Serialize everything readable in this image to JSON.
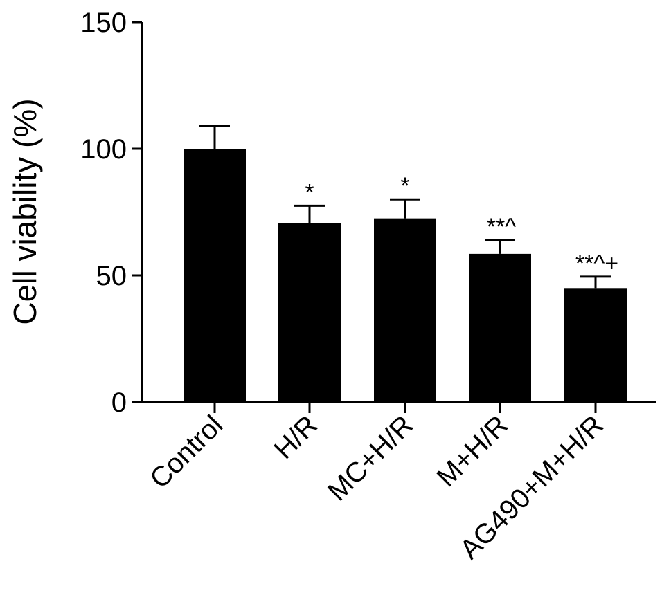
{
  "chart_data": {
    "type": "bar",
    "title": "",
    "xlabel": "",
    "ylabel": "Cell viability (%)",
    "ylim": [
      0,
      150
    ],
    "yticks": [
      0,
      50,
      100,
      150
    ],
    "ytick_labels": [
      "0",
      "50",
      "100",
      "150"
    ],
    "categories": [
      "Control",
      "H/R",
      "MC+H/R",
      "M+H/R",
      "AG490+M+H/R"
    ],
    "values": [
      100,
      70.5,
      72.5,
      58.5,
      45
    ],
    "errors": [
      9,
      7,
      7.5,
      5.5,
      4.5
    ],
    "annotations": [
      "",
      "*",
      "*",
      "**^",
      "**^+"
    ],
    "bar_color": "#000000",
    "grid": false,
    "legend": "none"
  }
}
